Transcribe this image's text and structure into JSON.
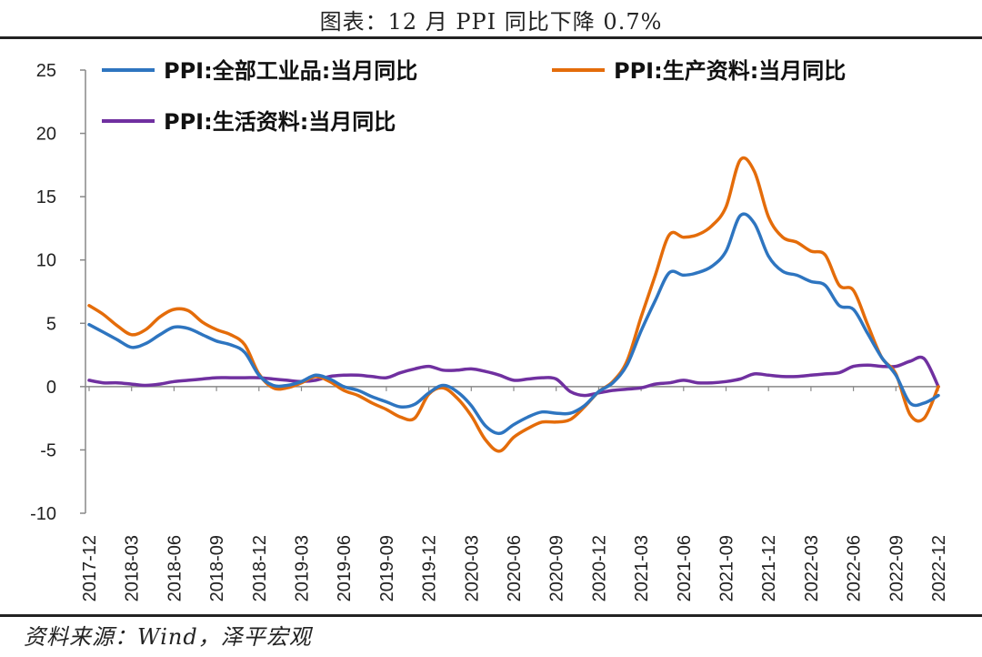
{
  "title": "图表：12 月 PPI 同比下降 0.7%",
  "source": "资料来源：Wind，泽平宏观",
  "chart_data": {
    "type": "line",
    "title": "图表：12 月 PPI 同比下降 0.7%",
    "xlabel": "",
    "ylabel": "",
    "ylim": [
      -10,
      25
    ],
    "yticks": [
      25,
      20,
      15,
      10,
      5,
      0,
      -5,
      -10
    ],
    "x_tick_labels": [
      "2017-12",
      "2018-03",
      "2018-06",
      "2018-09",
      "2018-12",
      "2019-03",
      "2019-06",
      "2019-09",
      "2019-12",
      "2020-03",
      "2020-06",
      "2020-09",
      "2020-12",
      "2021-03",
      "2021-06",
      "2021-09",
      "2021-12",
      "2022-03",
      "2022-06",
      "2022-09",
      "2022-12"
    ],
    "x": [
      "2017-12",
      "2018-01",
      "2018-02",
      "2018-03",
      "2018-04",
      "2018-05",
      "2018-06",
      "2018-07",
      "2018-08",
      "2018-09",
      "2018-10",
      "2018-11",
      "2018-12",
      "2019-01",
      "2019-02",
      "2019-03",
      "2019-04",
      "2019-05",
      "2019-06",
      "2019-07",
      "2019-08",
      "2019-09",
      "2019-10",
      "2019-11",
      "2019-12",
      "2020-01",
      "2020-02",
      "2020-03",
      "2020-04",
      "2020-05",
      "2020-06",
      "2020-07",
      "2020-08",
      "2020-09",
      "2020-10",
      "2020-11",
      "2020-12",
      "2021-01",
      "2021-02",
      "2021-03",
      "2021-04",
      "2021-05",
      "2021-06",
      "2021-07",
      "2021-08",
      "2021-09",
      "2021-10",
      "2021-11",
      "2021-12",
      "2022-01",
      "2022-02",
      "2022-03",
      "2022-04",
      "2022-05",
      "2022-06",
      "2022-07",
      "2022-08",
      "2022-09",
      "2022-10",
      "2022-11",
      "2022-12"
    ],
    "series": [
      {
        "name": "PPI:全部工业品:当月同比",
        "color": "#2E75C0",
        "values": [
          4.9,
          4.3,
          3.7,
          3.1,
          3.4,
          4.1,
          4.7,
          4.6,
          4.1,
          3.6,
          3.3,
          2.7,
          0.9,
          0.1,
          0.1,
          0.4,
          0.9,
          0.6,
          0.0,
          -0.3,
          -0.8,
          -1.2,
          -1.6,
          -1.4,
          -0.5,
          0.1,
          -0.4,
          -1.5,
          -3.1,
          -3.7,
          -3.0,
          -2.4,
          -2.0,
          -2.1,
          -2.1,
          -1.5,
          -0.4,
          0.3,
          1.7,
          4.4,
          6.8,
          9.0,
          8.8,
          9.0,
          9.5,
          10.7,
          13.5,
          12.9,
          10.3,
          9.1,
          8.8,
          8.3,
          8.0,
          6.4,
          6.1,
          4.2,
          2.3,
          0.9,
          -1.3,
          -1.3,
          -0.7
        ]
      },
      {
        "name": "PPI:生产资料:当月同比",
        "color": "#E46C0A",
        "values": [
          6.4,
          5.7,
          4.8,
          4.1,
          4.5,
          5.5,
          6.1,
          6.0,
          5.1,
          4.5,
          4.1,
          3.3,
          1.0,
          -0.1,
          -0.1,
          0.3,
          0.8,
          0.4,
          -0.3,
          -0.7,
          -1.3,
          -1.8,
          -2.4,
          -2.5,
          -0.6,
          -0.1,
          -0.9,
          -2.3,
          -4.2,
          -5.1,
          -4.0,
          -3.3,
          -2.8,
          -2.8,
          -2.6,
          -1.6,
          -0.4,
          0.4,
          2.0,
          5.5,
          8.8,
          12.0,
          11.8,
          12.0,
          12.7,
          14.2,
          17.9,
          17.0,
          13.4,
          11.8,
          11.4,
          10.7,
          10.4,
          8.0,
          7.6,
          4.9,
          2.3,
          1.0,
          -2.2,
          -2.5,
          0.0
        ]
      },
      {
        "name": "PPI:生活资料:当月同比",
        "color": "#7030A0",
        "values": [
          0.5,
          0.3,
          0.3,
          0.2,
          0.1,
          0.2,
          0.4,
          0.5,
          0.6,
          0.7,
          0.7,
          0.7,
          0.7,
          0.6,
          0.5,
          0.4,
          0.5,
          0.8,
          0.9,
          0.9,
          0.8,
          0.7,
          1.1,
          1.4,
          1.6,
          1.3,
          1.3,
          1.4,
          1.2,
          0.9,
          0.5,
          0.6,
          0.7,
          0.6,
          -0.4,
          -0.7,
          -0.5,
          -0.3,
          -0.2,
          -0.1,
          0.2,
          0.3,
          0.5,
          0.3,
          0.3,
          0.4,
          0.6,
          1.0,
          0.9,
          0.8,
          0.8,
          0.9,
          1.0,
          1.1,
          1.6,
          1.7,
          1.6,
          1.6,
          2.0,
          2.2,
          0.0
        ]
      }
    ],
    "legend_position": "top",
    "grid": false
  }
}
